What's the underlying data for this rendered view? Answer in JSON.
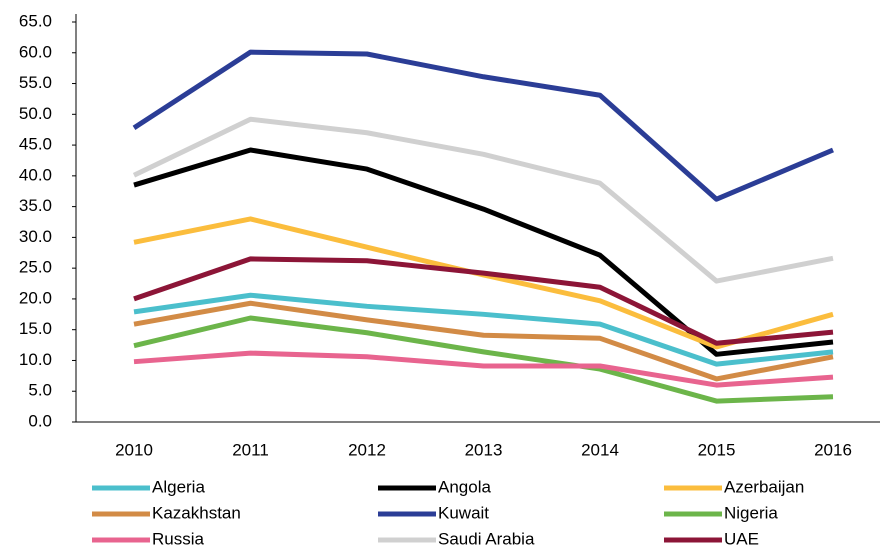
{
  "chart_data": {
    "type": "line",
    "categories": [
      "2010",
      "2011",
      "2012",
      "2013",
      "2014",
      "2015",
      "2016"
    ],
    "series": [
      {
        "name": "Algeria",
        "color": "#4bbfcc",
        "values": [
          17.9,
          20.6,
          18.8,
          17.5,
          15.9,
          9.4,
          11.4
        ]
      },
      {
        "name": "Angola",
        "color": "#000000",
        "values": [
          38.5,
          44.2,
          41.1,
          34.6,
          27.1,
          11.0,
          13.0
        ]
      },
      {
        "name": "Azerbaijan",
        "color": "#fbbd3d",
        "values": [
          29.2,
          33.0,
          28.4,
          23.9,
          19.7,
          12.2,
          17.5
        ]
      },
      {
        "name": "Kazakhstan",
        "color": "#d28b46",
        "values": [
          15.9,
          19.3,
          16.6,
          14.1,
          13.6,
          7.0,
          10.6
        ]
      },
      {
        "name": "Kuwait",
        "color": "#2b3d96",
        "values": [
          47.8,
          60.1,
          59.8,
          56.1,
          53.1,
          36.2,
          44.2
        ]
      },
      {
        "name": "Nigeria",
        "color": "#6cb54a",
        "values": [
          12.4,
          16.9,
          14.5,
          11.4,
          8.6,
          3.4,
          4.1
        ]
      },
      {
        "name": "Russia",
        "color": "#e8648f",
        "values": [
          9.8,
          11.2,
          10.6,
          9.1,
          9.1,
          6.0,
          7.3
        ]
      },
      {
        "name": "Saudi Arabia",
        "color": "#d0d0d0",
        "values": [
          40.1,
          49.2,
          47.0,
          43.5,
          38.8,
          22.9,
          26.6
        ]
      },
      {
        "name": "UAE",
        "color": "#8c1537",
        "values": [
          20.0,
          26.5,
          26.2,
          24.2,
          21.9,
          12.8,
          14.6
        ]
      }
    ],
    "ylim": [
      0,
      65
    ],
    "yticks": [
      {
        "value": 0,
        "label": "0.0"
      },
      {
        "value": 5,
        "label": "5.0"
      },
      {
        "value": 10,
        "label": "10.0"
      },
      {
        "value": 15,
        "label": "15.0"
      },
      {
        "value": 20,
        "label": "20.0"
      },
      {
        "value": 25,
        "label": "25.0"
      },
      {
        "value": 30,
        "label": "30.0"
      },
      {
        "value": 35,
        "label": "35.0"
      },
      {
        "value": 40,
        "label": "40.0"
      },
      {
        "value": 45,
        "label": "45.0"
      },
      {
        "value": 50,
        "label": "50.0"
      },
      {
        "value": 55,
        "label": "55.0"
      },
      {
        "value": 60,
        "label": "60.0"
      },
      {
        "value": 65,
        "label": "65.0"
      }
    ],
    "grid": false,
    "legend": "bottom"
  }
}
